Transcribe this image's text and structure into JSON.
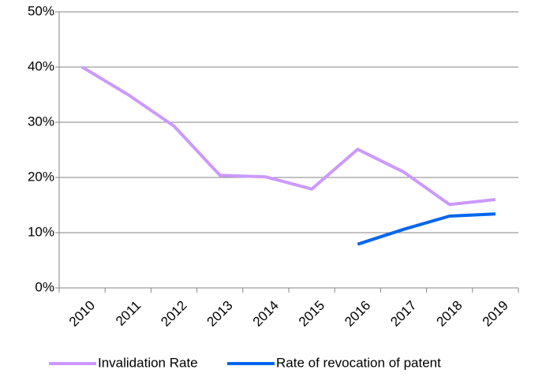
{
  "chart_data": {
    "type": "line",
    "categories": [
      "2010",
      "2011",
      "2012",
      "2013",
      "2014",
      "2015",
      "2016",
      "2017",
      "2018",
      "2019"
    ],
    "series": [
      {
        "name": "Invalidation Rate",
        "color": "#cc99ff",
        "values": [
          40,
          35,
          29.3,
          20.4,
          20.1,
          17.9,
          25.1,
          21,
          15.1,
          16
        ]
      },
      {
        "name": "Rate of revocation of patent",
        "color": "#0066ee",
        "values": [
          null,
          null,
          null,
          null,
          null,
          null,
          7.9,
          10.6,
          13,
          13.4
        ]
      }
    ],
    "ylim": [
      0,
      50
    ],
    "yticks": [
      {
        "value": 0,
        "label": "0%"
      },
      {
        "value": 10,
        "label": "10%"
      },
      {
        "value": 20,
        "label": "20%"
      },
      {
        "value": 30,
        "label": "30%"
      },
      {
        "value": 40,
        "label": "40%"
      },
      {
        "value": 50,
        "label": "50%"
      }
    ],
    "grid": true,
    "legend": "bottom"
  }
}
